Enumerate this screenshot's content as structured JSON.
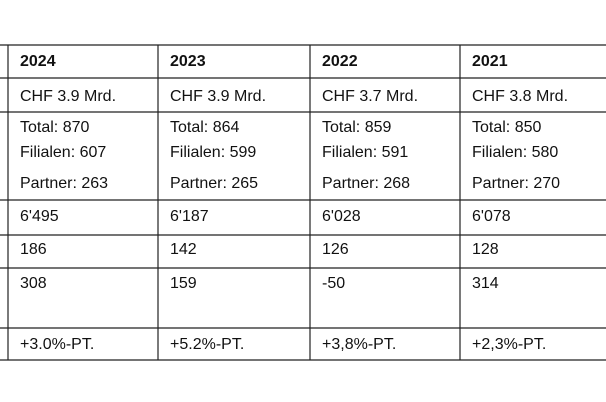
{
  "table": {
    "header": [
      "2024",
      "2023",
      "2022",
      "2021"
    ],
    "rows": [
      [
        "CHF 3.9 Mrd.",
        "CHF 3.9 Mrd.",
        "CHF 3.7 Mrd.",
        "CHF 3.8 Mrd."
      ],
      [
        [
          "Total: 870",
          "Filialen: 607",
          "Partner: 263"
        ],
        [
          "Total: 864",
          "Filialen: 599",
          "Partner: 265"
        ],
        [
          "Total: 859",
          "Filialen: 591",
          "Partner: 268"
        ],
        [
          "Total: 850",
          "Filialen: 580",
          "Partner: 270"
        ]
      ],
      [
        "6'495",
        "6'187",
        "6'028",
        "6'078"
      ],
      [
        "186",
        "142",
        "126",
        "128"
      ],
      [
        "308",
        "159",
        "-50",
        "314"
      ],
      [
        "+3.0%-PT.",
        "+5.2%-PT.",
        "+3,8%-PT.",
        "+2,3%-PT."
      ]
    ]
  }
}
